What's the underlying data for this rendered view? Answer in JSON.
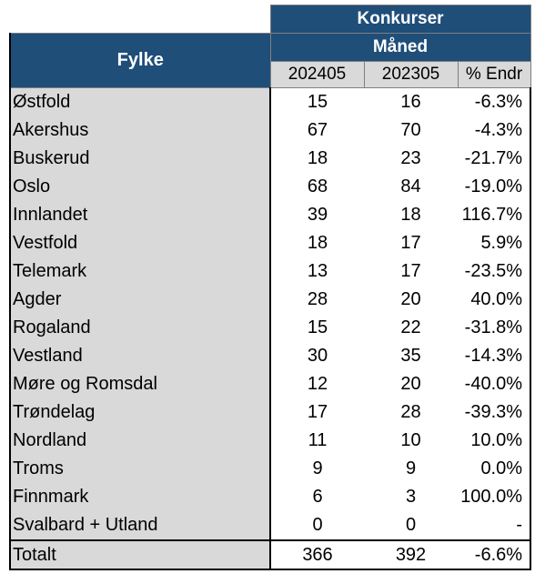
{
  "header": {
    "konkurser": "Konkurser",
    "maned": "Måned",
    "fylke": "Fylke",
    "col1": "202405",
    "col2": "202305",
    "col3": "% Endr"
  },
  "rows": [
    {
      "name": "Østfold",
      "a": "15",
      "b": "16",
      "c": "-6.3%"
    },
    {
      "name": "Akershus",
      "a": "67",
      "b": "70",
      "c": "-4.3%"
    },
    {
      "name": "Buskerud",
      "a": "18",
      "b": "23",
      "c": "-21.7%"
    },
    {
      "name": "Oslo",
      "a": "68",
      "b": "84",
      "c": "-19.0%"
    },
    {
      "name": "Innlandet",
      "a": "39",
      "b": "18",
      "c": "116.7%"
    },
    {
      "name": "Vestfold",
      "a": "18",
      "b": "17",
      "c": "5.9%"
    },
    {
      "name": "Telemark",
      "a": "13",
      "b": "17",
      "c": "-23.5%"
    },
    {
      "name": "Agder",
      "a": "28",
      "b": "20",
      "c": "40.0%"
    },
    {
      "name": "Rogaland",
      "a": "15",
      "b": "22",
      "c": "-31.8%"
    },
    {
      "name": "Vestland",
      "a": "30",
      "b": "35",
      "c": "-14.3%"
    },
    {
      "name": "Møre og Romsdal",
      "a": "12",
      "b": "20",
      "c": "-40.0%"
    },
    {
      "name": "Trøndelag",
      "a": "17",
      "b": "28",
      "c": "-39.3%"
    },
    {
      "name": "Nordland",
      "a": "11",
      "b": "10",
      "c": "10.0%"
    },
    {
      "name": "Troms",
      "a": "9",
      "b": "9",
      "c": "0.0%"
    },
    {
      "name": "Finnmark",
      "a": "6",
      "b": "3",
      "c": "100.0%"
    },
    {
      "name": "Svalbard + Utland",
      "a": "0",
      "b": "0",
      "c": "-"
    }
  ],
  "total": {
    "name": "Totalt",
    "a": "366",
    "b": "392",
    "c": "-6.6%"
  },
  "colors": {
    "header_blue": "#1f4e79",
    "gray": "#d9d9d9"
  }
}
